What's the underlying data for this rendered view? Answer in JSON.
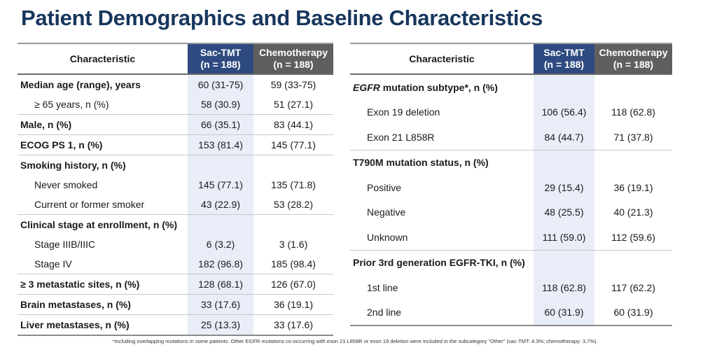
{
  "title": "Patient Demographics and Baseline Characteristics",
  "headers": {
    "characteristic": "Characteristic",
    "sac_name": "Sac-TMT",
    "sac_n": "(n = 188)",
    "chemo_name": "Chemotherapy",
    "chemo_n": "(n = 188)"
  },
  "colors": {
    "title": "#17365d",
    "sac_header": "#2e4a80",
    "chemo_header": "#5f5f5f",
    "sac_column": "#e8edf7"
  },
  "left_rows": [
    {
      "label": "Median age (range), years",
      "sac": "60 (31-75)",
      "chemo": "59 (33-75)"
    },
    {
      "label": "≥ 65 years, n (%)",
      "sac": "58 (30.9)",
      "chemo": "51 (27.1)"
    },
    {
      "label": "Male, n (%)",
      "sac": "66 (35.1)",
      "chemo": "83 (44.1)"
    },
    {
      "label": "ECOG PS 1, n (%)",
      "sac": "153 (81.4)",
      "chemo": "145 (77.1)"
    },
    {
      "label": "Smoking history, n (%)",
      "sac": "",
      "chemo": ""
    },
    {
      "label": "Never smoked",
      "sac": "145 (77.1)",
      "chemo": "135 (71.8)"
    },
    {
      "label": "Current or former smoker",
      "sac": "43 (22.9)",
      "chemo": "53 (28.2)"
    },
    {
      "label": "Clinical stage at enrollment, n (%)",
      "sac": "",
      "chemo": ""
    },
    {
      "label": "Stage IIIB/IIIC",
      "sac": "6 (3.2)",
      "chemo": "3 (1.6)"
    },
    {
      "label": "Stage IV",
      "sac": "182 (96.8)",
      "chemo": "185 (98.4)"
    },
    {
      "label": "≥ 3 metastatic sites, n (%)",
      "sac": "128 (68.1)",
      "chemo": "126 (67.0)"
    },
    {
      "label": "Brain metastases, n (%)",
      "sac": "33 (17.6)",
      "chemo": "36 (19.1)"
    },
    {
      "label": "Liver metastases, n (%)",
      "sac": "25 (13.3)",
      "chemo": "33 (17.6)"
    }
  ],
  "right_rows": [
    {
      "label_em": "EGFR",
      "label": " mutation subtype*, n (%)",
      "sac": "",
      "chemo": ""
    },
    {
      "label": "Exon 19 deletion",
      "sac": "106 (56.4)",
      "chemo": "118 (62.8)"
    },
    {
      "label": "Exon 21 L858R",
      "sac": "84 (44.7)",
      "chemo": "71 (37.8)"
    },
    {
      "label": "T790M mutation status, n (%)",
      "sac": "",
      "chemo": ""
    },
    {
      "label": "Positive",
      "sac": "29 (15.4)",
      "chemo": "36 (19.1)"
    },
    {
      "label": "Negative",
      "sac": "48 (25.5)",
      "chemo": "40 (21.3)"
    },
    {
      "label": "Unknown",
      "sac": "111 (59.0)",
      "chemo": "112 (59.6)"
    },
    {
      "label": "Prior 3rd generation EGFR-TKI, n (%)",
      "sac": "",
      "chemo": ""
    },
    {
      "label": "1st line",
      "sac": "118 (62.8)",
      "chemo": "117 (62.2)"
    },
    {
      "label": "2nd line",
      "sac": "60 (31.9)",
      "chemo": "60 (31.9)"
    }
  ],
  "footnote": "*Including overlapping mutations in some patients. Other EGFR mutations co-occurring with exon 21 L858R or exon 19 deletion were included in the subcategory \"Other\" (sac-TMT: 4.3%; chemotherapy: 3.7%)."
}
